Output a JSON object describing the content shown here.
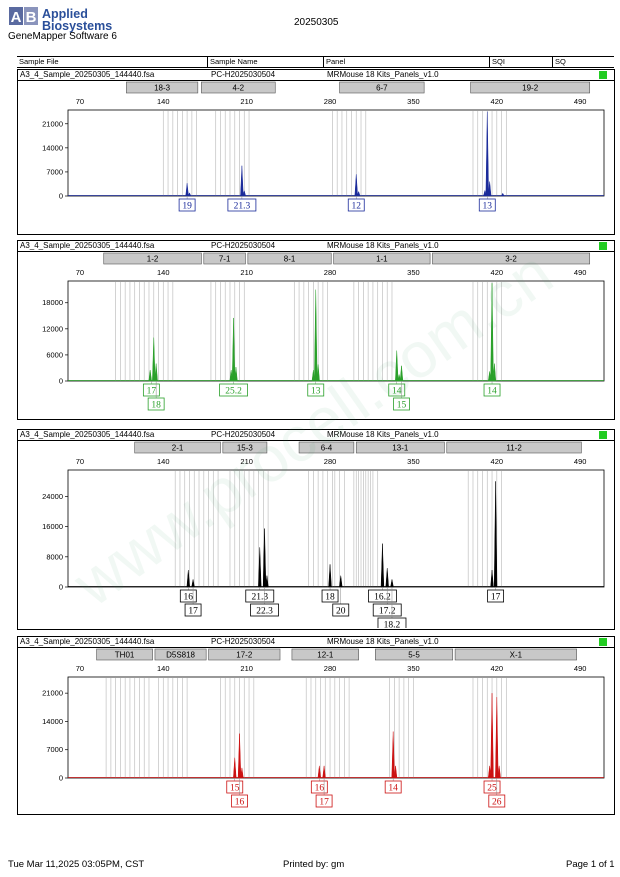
{
  "header": {
    "logo_line1": "Applied",
    "logo_line2": "Biosystems",
    "software": "GeneMapper Software 6",
    "run_date": "20250305",
    "col_sample_file": "Sample File",
    "col_sample_name": "Sample Name",
    "col_panel": "Panel",
    "col_sqi": "SQI",
    "col_sq": "SQ"
  },
  "footer": {
    "printed_at": "Tue Mar 11,2025 03:05PM, CST",
    "printed_by": "Printed by: gm",
    "page": "Page 1 of 1"
  },
  "watermark": "www.procell.com.cn",
  "colors": {
    "blue": "#1a2a9a",
    "green": "#2aa02a",
    "black": "#000000",
    "red": "#cc1111",
    "sq_green": "#22cc22",
    "bin_gray": "#c0c0c0",
    "marker_fill": "#c8c8c8"
  },
  "chart_data": [
    {
      "type": "line",
      "sample_file": "A3_4_Sample_20250305_144440.fsa",
      "sample_name": "PC-H2025030504",
      "panel": "MRMouse 18 Kits_Panels_v1.0",
      "color": "#1a2a9a",
      "xlim": [
        60,
        510
      ],
      "xticks": [
        70,
        140,
        210,
        280,
        350,
        420,
        490
      ],
      "ylim": [
        0,
        25000
      ],
      "yticks": [
        0,
        7000,
        14000,
        21000
      ],
      "markers": [
        {
          "name": "18-3",
          "start": 109,
          "end": 169
        },
        {
          "name": "4-2",
          "start": 172,
          "end": 234
        },
        {
          "name": "6-7",
          "start": 288,
          "end": 359
        },
        {
          "name": "19-2",
          "start": 398,
          "end": 498
        }
      ],
      "bins": [
        140,
        144,
        148,
        152,
        156,
        160,
        164,
        168,
        184,
        188,
        192,
        196,
        200,
        204,
        208,
        212,
        282,
        286,
        290,
        294,
        298,
        302,
        306,
        310,
        400,
        404,
        408,
        412,
        416,
        420,
        424,
        428
      ],
      "peaks": [
        {
          "x": 160,
          "y": 3700
        },
        {
          "x": 162,
          "y": 900
        },
        {
          "x": 206,
          "y": 8800
        },
        {
          "x": 208,
          "y": 1500
        },
        {
          "x": 302,
          "y": 6300
        },
        {
          "x": 304,
          "y": 1300
        },
        {
          "x": 410,
          "y": 1600
        },
        {
          "x": 412,
          "y": 24500
        },
        {
          "x": 414,
          "y": 4200
        },
        {
          "x": 425,
          "y": 800
        }
      ],
      "alleles": [
        {
          "label": "19",
          "x": 160,
          "row": 0
        },
        {
          "label": "21.3",
          "x": 206,
          "row": 0
        },
        {
          "label": "12",
          "x": 302,
          "row": 0
        },
        {
          "label": "13",
          "x": 412,
          "row": 0
        }
      ]
    },
    {
      "type": "line",
      "sample_file": "A3_4_Sample_20250305_144440.fsa",
      "sample_name": "PC-H2025030504",
      "panel": "MRMouse 18 Kits_Panels_v1.0",
      "color": "#2aa02a",
      "xlim": [
        60,
        510
      ],
      "xticks": [
        70,
        140,
        210,
        280,
        350,
        420,
        490
      ],
      "ylim": [
        0,
        23000
      ],
      "yticks": [
        0,
        6000,
        12000,
        18000
      ],
      "markers": [
        {
          "name": "1-2",
          "start": 90,
          "end": 172
        },
        {
          "name": "7-1",
          "start": 174,
          "end": 209
        },
        {
          "name": "8-1",
          "start": 211,
          "end": 281
        },
        {
          "name": "1-1",
          "start": 283,
          "end": 364
        },
        {
          "name": "3-2",
          "start": 366,
          "end": 498
        }
      ],
      "bins": [
        100,
        104,
        108,
        112,
        116,
        120,
        124,
        128,
        132,
        136,
        140,
        144,
        148,
        180,
        184,
        188,
        192,
        196,
        200,
        204,
        208,
        250,
        254,
        258,
        262,
        266,
        270,
        274,
        278,
        300,
        304,
        308,
        312,
        316,
        320,
        324,
        328,
        332,
        400,
        404,
        408,
        412,
        416,
        420,
        424
      ],
      "peaks": [
        {
          "x": 129,
          "y": 2500
        },
        {
          "x": 132,
          "y": 10000
        },
        {
          "x": 134,
          "y": 4000
        },
        {
          "x": 197,
          "y": 2500
        },
        {
          "x": 199,
          "y": 14500
        },
        {
          "x": 201,
          "y": 3200
        },
        {
          "x": 266,
          "y": 2500
        },
        {
          "x": 268,
          "y": 21000
        },
        {
          "x": 270,
          "y": 3800
        },
        {
          "x": 336,
          "y": 7000
        },
        {
          "x": 338,
          "y": 1500
        },
        {
          "x": 340,
          "y": 3500
        },
        {
          "x": 414,
          "y": 2200
        },
        {
          "x": 416,
          "y": 22500
        },
        {
          "x": 418,
          "y": 4000
        }
      ],
      "alleles": [
        {
          "label": "17",
          "x": 130,
          "row": 0
        },
        {
          "label": "18",
          "x": 134,
          "row": 1
        },
        {
          "label": "25.2",
          "x": 199,
          "row": 0
        },
        {
          "label": "13",
          "x": 268,
          "row": 0
        },
        {
          "label": "14",
          "x": 336,
          "row": 0
        },
        {
          "label": "15",
          "x": 340,
          "row": 1
        },
        {
          "label": "14",
          "x": 416,
          "row": 0
        }
      ]
    },
    {
      "type": "line",
      "sample_file": "A3_4_Sample_20250305_144440.fsa",
      "sample_name": "PC-H2025030504",
      "panel": "MRMouse 18 Kits_Panels_v1.0",
      "color": "#000000",
      "xlim": [
        60,
        510
      ],
      "xticks": [
        70,
        140,
        210,
        280,
        350,
        420,
        490
      ],
      "ylim": [
        0,
        31000
      ],
      "yticks": [
        0,
        8000,
        16000,
        24000
      ],
      "markers": [
        {
          "name": "2-1",
          "start": 116,
          "end": 188
        },
        {
          "name": "15-3",
          "start": 190,
          "end": 227
        },
        {
          "name": "6-4",
          "start": 254,
          "end": 300
        },
        {
          "name": "13-1",
          "start": 302,
          "end": 376
        },
        {
          "name": "11-2",
          "start": 378,
          "end": 491
        }
      ],
      "bins": [
        150,
        154,
        158,
        162,
        166,
        170,
        174,
        178,
        182,
        186,
        196,
        200,
        204,
        208,
        212,
        216,
        220,
        224,
        228,
        262,
        266,
        270,
        274,
        278,
        282,
        284,
        288,
        292,
        300,
        302,
        304,
        306,
        308,
        310,
        312,
        314,
        316,
        320,
        396,
        400,
        404,
        408,
        412,
        416,
        420,
        424
      ],
      "peaks": [
        {
          "x": 161,
          "y": 4500
        },
        {
          "x": 165,
          "y": 2000
        },
        {
          "x": 221,
          "y": 10500
        },
        {
          "x": 225,
          "y": 15500
        },
        {
          "x": 227,
          "y": 3000
        },
        {
          "x": 280,
          "y": 6000
        },
        {
          "x": 289,
          "y": 3000
        },
        {
          "x": 324,
          "y": 11500
        },
        {
          "x": 328,
          "y": 5000
        },
        {
          "x": 332,
          "y": 2000
        },
        {
          "x": 416,
          "y": 4500
        },
        {
          "x": 419,
          "y": 28000
        }
      ],
      "alleles": [
        {
          "label": "16",
          "x": 161,
          "row": 0
        },
        {
          "label": "17",
          "x": 165,
          "row": 1
        },
        {
          "label": "21.3",
          "x": 221,
          "row": 0
        },
        {
          "label": "22.3",
          "x": 225,
          "row": 1
        },
        {
          "label": "18",
          "x": 280,
          "row": 0
        },
        {
          "label": "20",
          "x": 289,
          "row": 1
        },
        {
          "label": "16.2",
          "x": 324,
          "row": 0
        },
        {
          "label": "17.2",
          "x": 328,
          "row": 1
        },
        {
          "label": "18.2",
          "x": 332,
          "row": 2
        },
        {
          "label": "17",
          "x": 419,
          "row": 0
        }
      ]
    },
    {
      "type": "line",
      "sample_file": "A3_4_Sample_20250305_144440.fsa",
      "sample_name": "PC-H2025030504",
      "panel": "MRMouse 18 Kits_Panels_v1.0",
      "color": "#cc1111",
      "xlim": [
        60,
        510
      ],
      "xticks": [
        70,
        140,
        210,
        280,
        350,
        420,
        490
      ],
      "ylim": [
        0,
        25000
      ],
      "yticks": [
        0,
        7000,
        14000,
        21000
      ],
      "markers": [
        {
          "name": "TH01",
          "start": 84,
          "end": 131
        },
        {
          "name": "D5S818",
          "start": 133,
          "end": 176
        },
        {
          "name": "17-2",
          "start": 178,
          "end": 238
        },
        {
          "name": "12-1",
          "start": 248,
          "end": 304
        },
        {
          "name": "5-5",
          "start": 318,
          "end": 383
        },
        {
          "name": "X-1",
          "start": 385,
          "end": 487
        }
      ],
      "bins": [
        92,
        96,
        100,
        104,
        108,
        112,
        116,
        120,
        124,
        128,
        136,
        140,
        144,
        148,
        152,
        156,
        160,
        188,
        192,
        196,
        200,
        204,
        208,
        212,
        216,
        260,
        264,
        268,
        272,
        276,
        280,
        284,
        288,
        292,
        296,
        330,
        334,
        338,
        342,
        346,
        350,
        400,
        404,
        408,
        412,
        416,
        420,
        424,
        428
      ],
      "peaks": [
        {
          "x": 200,
          "y": 5000
        },
        {
          "x": 204,
          "y": 11000
        },
        {
          "x": 206,
          "y": 2500
        },
        {
          "x": 271,
          "y": 3000
        },
        {
          "x": 275,
          "y": 3000
        },
        {
          "x": 333,
          "y": 11500
        },
        {
          "x": 335,
          "y": 3000
        },
        {
          "x": 414,
          "y": 3000
        },
        {
          "x": 416,
          "y": 21000
        },
        {
          "x": 420,
          "y": 20000
        },
        {
          "x": 422,
          "y": 3000
        }
      ],
      "alleles": [
        {
          "label": "15",
          "x": 200,
          "row": 0
        },
        {
          "label": "16",
          "x": 204,
          "row": 1
        },
        {
          "label": "16",
          "x": 271,
          "row": 0
        },
        {
          "label": "17",
          "x": 275,
          "row": 1
        },
        {
          "label": "14",
          "x": 333,
          "row": 0
        },
        {
          "label": "25",
          "x": 416,
          "row": 0
        },
        {
          "label": "26",
          "x": 420,
          "row": 1
        }
      ]
    }
  ]
}
